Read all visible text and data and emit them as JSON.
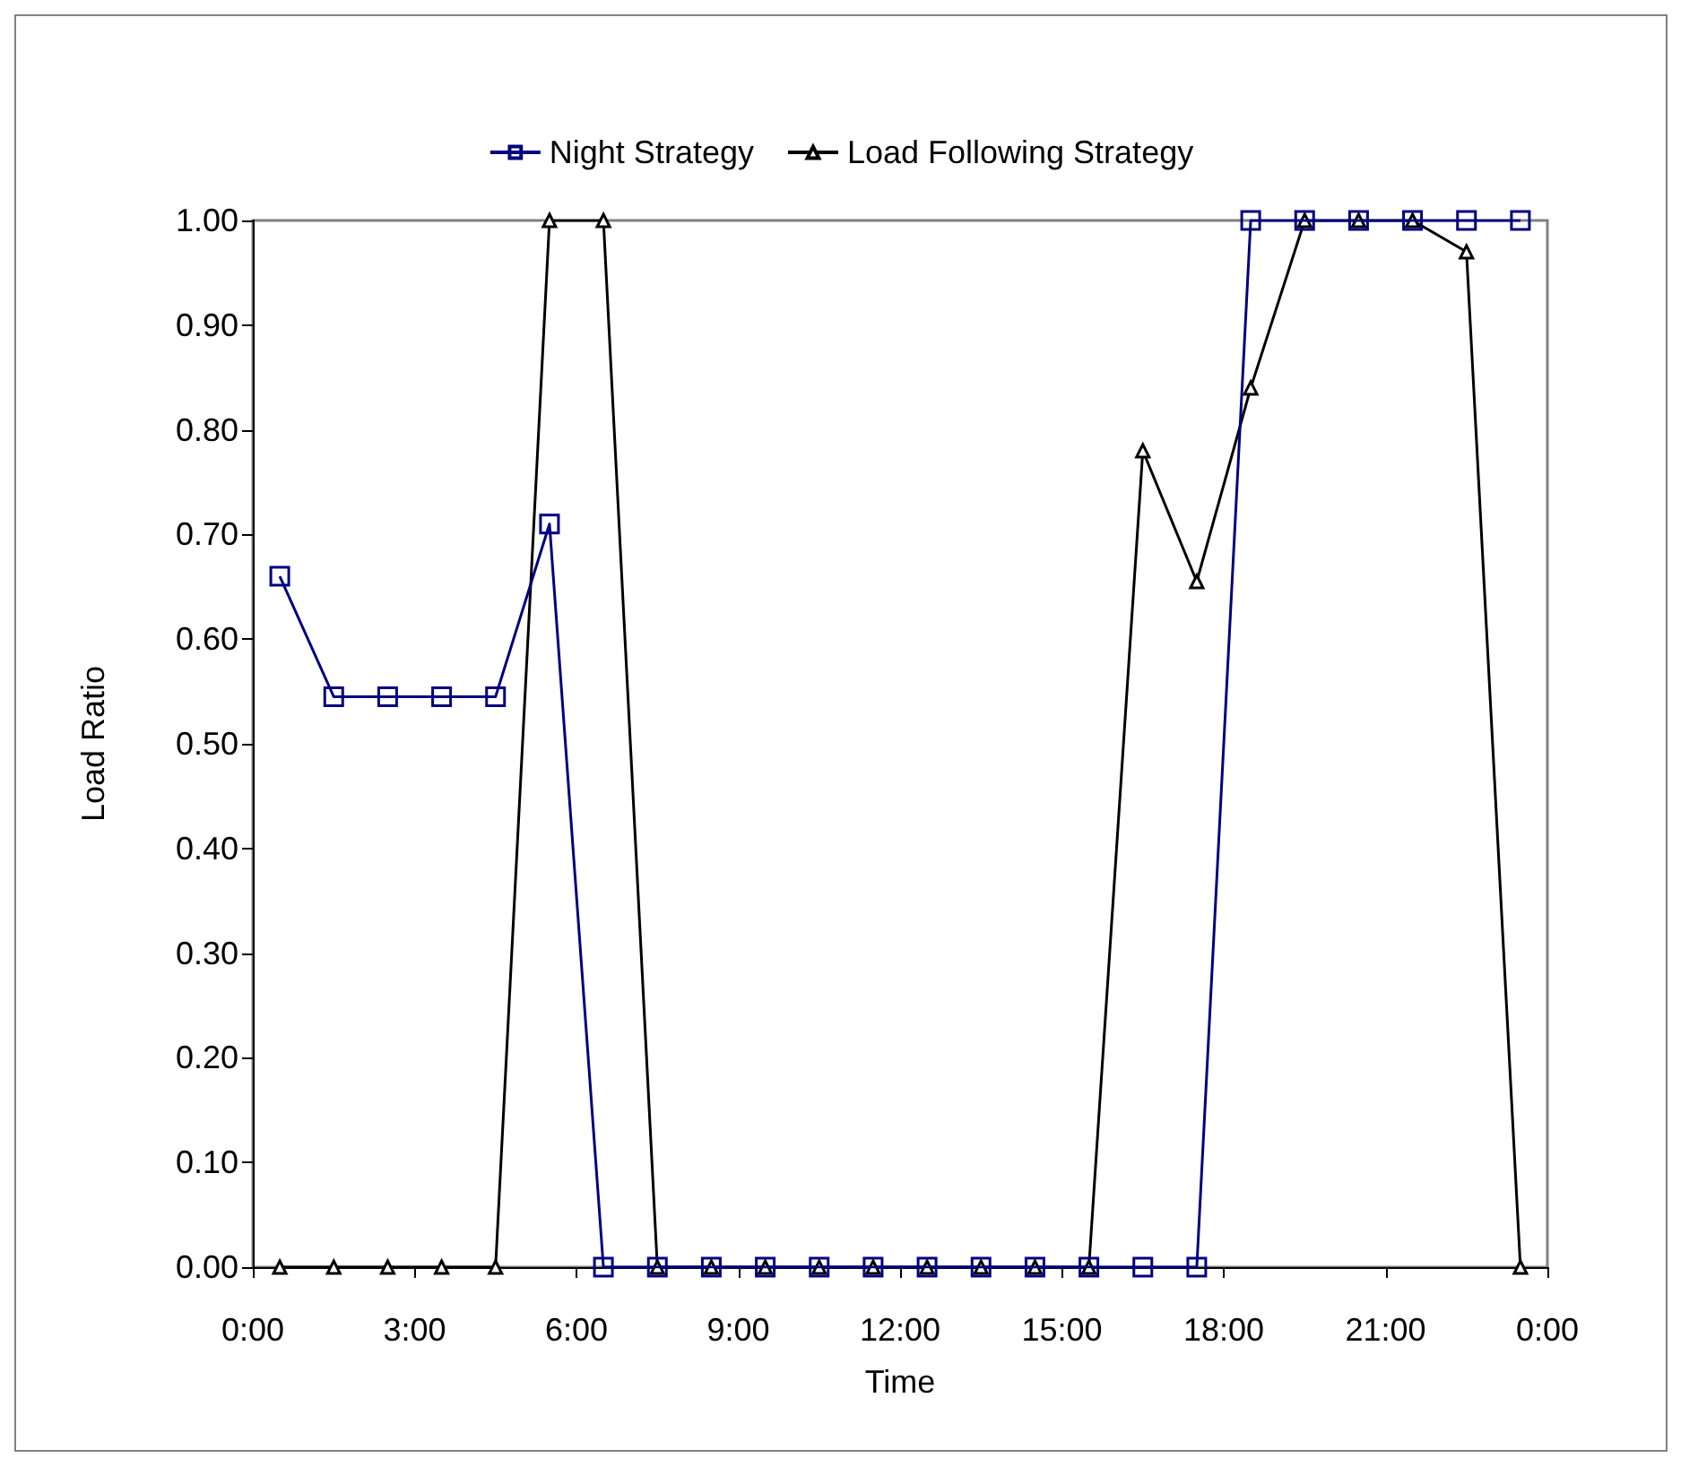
{
  "chart_data": {
    "type": "line",
    "xlabel": "Time",
    "ylabel": "Load Ratio",
    "xlim": [
      0,
      24
    ],
    "xticks": [
      {
        "value": 0,
        "label": "0:00"
      },
      {
        "value": 3,
        "label": "3:00"
      },
      {
        "value": 6,
        "label": "6:00"
      },
      {
        "value": 9,
        "label": "9:00"
      },
      {
        "value": 12,
        "label": "12:00"
      },
      {
        "value": 15,
        "label": "15:00"
      },
      {
        "value": 18,
        "label": "18:00"
      },
      {
        "value": 21,
        "label": "21:00"
      },
      {
        "value": 24,
        "label": "0:00"
      }
    ],
    "ylim": [
      0,
      1
    ],
    "yticks": [
      {
        "value": 0,
        "label": "0.00"
      },
      {
        "value": 0.1,
        "label": "0.10"
      },
      {
        "value": 0.2,
        "label": "0.20"
      },
      {
        "value": 0.3,
        "label": "0.30"
      },
      {
        "value": 0.4,
        "label": "0.40"
      },
      {
        "value": 0.5,
        "label": "0.50"
      },
      {
        "value": 0.6,
        "label": "0.60"
      },
      {
        "value": 0.7,
        "label": "0.70"
      },
      {
        "value": 0.8,
        "label": "0.80"
      },
      {
        "value": 0.9,
        "label": "0.90"
      },
      {
        "value": 1,
        "label": "1.00"
      }
    ],
    "x": [
      0.5,
      1.5,
      2.5,
      3.5,
      4.5,
      5.5,
      6.5,
      7.5,
      8.5,
      9.5,
      10.5,
      11.5,
      12.5,
      13.5,
      14.5,
      15.5,
      16.5,
      17.5,
      18.5,
      19.5,
      20.5,
      21.5,
      22.5,
      23.5
    ],
    "series": [
      {
        "name": "Night Strategy",
        "color": "#000080",
        "marker": "square",
        "values": [
          0.66,
          0.545,
          0.545,
          0.545,
          0.545,
          0.71,
          0,
          0,
          0,
          0,
          0,
          0,
          0,
          0,
          0,
          0,
          0,
          0,
          1,
          1,
          1,
          1,
          1,
          1
        ]
      },
      {
        "name": "Load Following Strategy",
        "color": "#000000",
        "marker": "triangle",
        "values": [
          0,
          0,
          0,
          0,
          0,
          1,
          1,
          0,
          0,
          0,
          0,
          0,
          0,
          0,
          0,
          0,
          0.78,
          0.655,
          0.84,
          1,
          1,
          1,
          0.97,
          0
        ]
      }
    ],
    "grid": false,
    "legend": "top",
    "line_style": "solid"
  }
}
